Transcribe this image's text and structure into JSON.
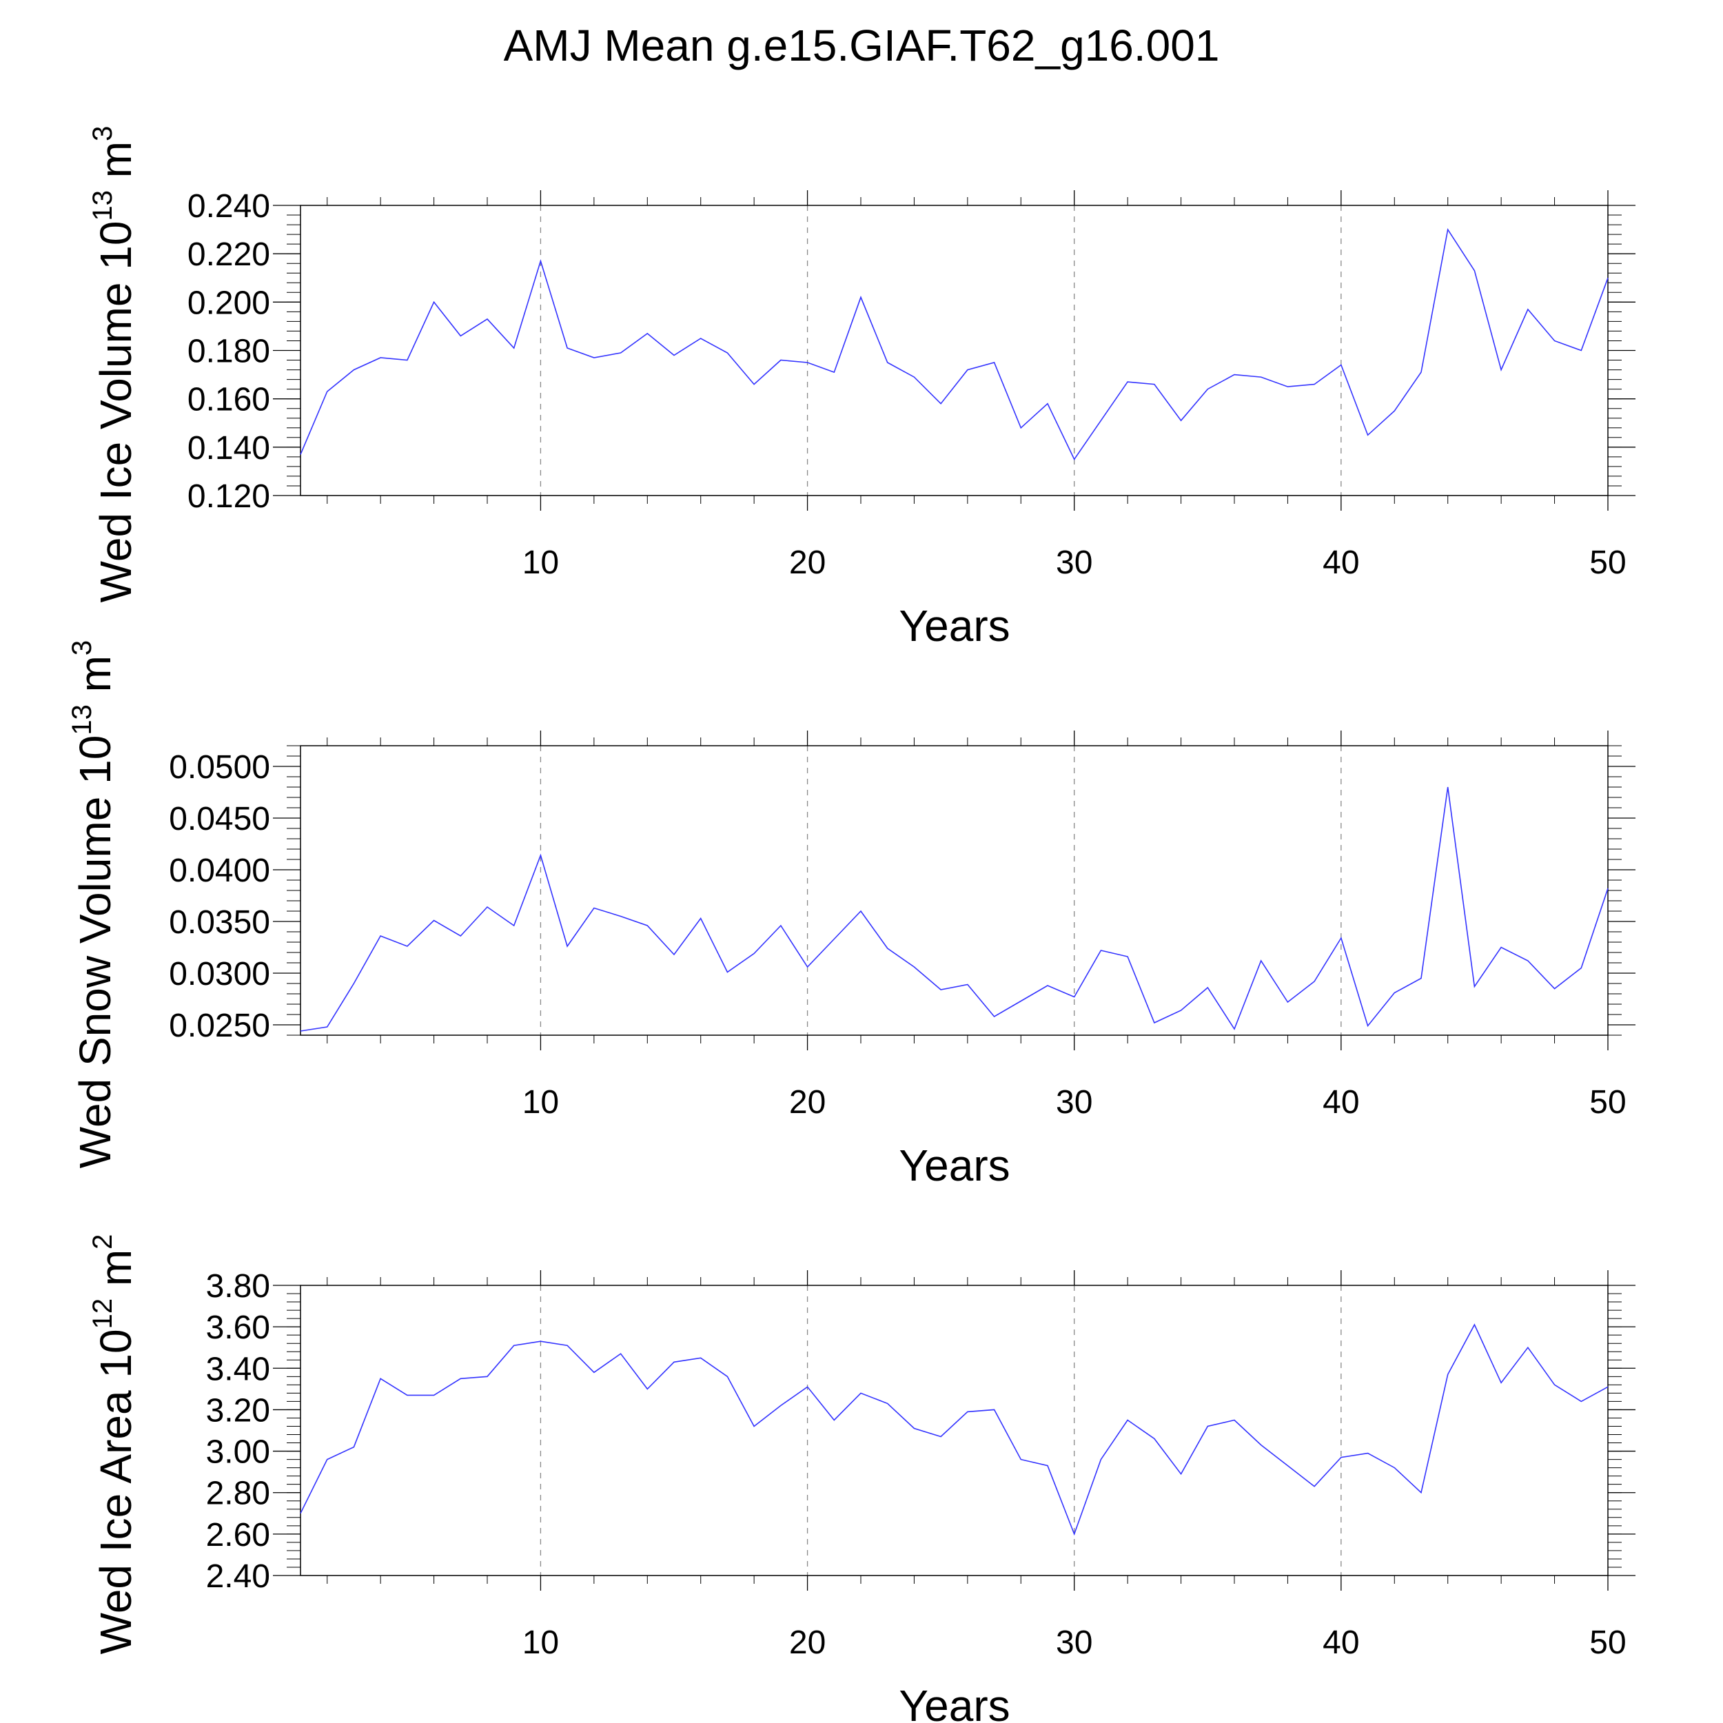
{
  "title": "AMJ Mean g.e15.GIAF.T62_g16.001",
  "chart_data": [
    {
      "type": "line",
      "ylabel": "Wed Ice Volume 10",
      "ylabel_exp": "13",
      "ylabel_unit": " m",
      "ylabel_unit_exp": "3",
      "xlabel": "Years",
      "xlim": [
        1,
        50
      ],
      "ylim": [
        0.12,
        0.24
      ],
      "x_ticks": [
        "10",
        "20",
        "30",
        "40",
        "50"
      ],
      "y_ticks": [
        "0.120",
        "0.140",
        "0.160",
        "0.180",
        "0.200",
        "0.220",
        "0.240"
      ],
      "grid": "vertical dashed at 10, 20, 30, 40",
      "series_color": "#3333ff",
      "values": [
        0.137,
        0.163,
        0.172,
        0.177,
        0.176,
        0.2,
        0.186,
        0.193,
        0.181,
        0.217,
        0.181,
        0.177,
        0.179,
        0.187,
        0.178,
        0.185,
        0.179,
        0.166,
        0.176,
        0.175,
        0.171,
        0.202,
        0.175,
        0.169,
        0.158,
        0.172,
        0.175,
        0.148,
        0.158,
        0.135,
        0.151,
        0.167,
        0.166,
        0.151,
        0.164,
        0.17,
        0.169,
        0.165,
        0.166,
        0.174,
        0.145,
        0.155,
        0.171,
        0.23,
        0.213,
        0.172,
        0.197,
        0.184,
        0.18,
        0.21
      ]
    },
    {
      "type": "line",
      "ylabel": "Wed Snow Volume 10",
      "ylabel_exp": "13",
      "ylabel_unit": " m",
      "ylabel_unit_exp": "3",
      "xlabel": "Years",
      "xlim": [
        1,
        50
      ],
      "ylim": [
        0.024,
        0.052
      ],
      "x_ticks": [
        "10",
        "20",
        "30",
        "40",
        "50"
      ],
      "y_ticks": [
        "0.0250",
        "0.0300",
        "0.0350",
        "0.0400",
        "0.0450",
        "0.0500"
      ],
      "grid": "vertical dashed at 10, 20, 30, 40",
      "series_color": "#3333ff",
      "values": [
        0.0244,
        0.0248,
        0.029,
        0.0336,
        0.0326,
        0.0351,
        0.0336,
        0.0364,
        0.0346,
        0.0414,
        0.0326,
        0.0363,
        0.0355,
        0.0346,
        0.0318,
        0.0353,
        0.0301,
        0.0319,
        0.0346,
        0.0306,
        0.0333,
        0.036,
        0.0324,
        0.0306,
        0.0284,
        0.0289,
        0.0258,
        0.0273,
        0.0288,
        0.0277,
        0.0322,
        0.0316,
        0.0252,
        0.0264,
        0.0286,
        0.0246,
        0.0312,
        0.0272,
        0.0292,
        0.0334,
        0.0249,
        0.0281,
        0.0295,
        0.048,
        0.0287,
        0.0325,
        0.0312,
        0.0285,
        0.0305,
        0.0382
      ]
    },
    {
      "type": "line",
      "ylabel": "Wed Ice Area 10",
      "ylabel_exp": "12",
      "ylabel_unit": " m",
      "ylabel_unit_exp": "2",
      "xlabel": "Years",
      "xlim": [
        1,
        50
      ],
      "ylim": [
        2.4,
        3.8
      ],
      "x_ticks": [
        "10",
        "20",
        "30",
        "40",
        "50"
      ],
      "y_ticks": [
        "2.40",
        "2.60",
        "2.80",
        "3.00",
        "3.20",
        "3.40",
        "3.60",
        "3.80"
      ],
      "grid": "vertical dashed at 10, 20, 30, 40",
      "series_color": "#3333ff",
      "values": [
        2.7,
        2.96,
        3.02,
        3.35,
        3.27,
        3.27,
        3.35,
        3.36,
        3.51,
        3.53,
        3.51,
        3.38,
        3.47,
        3.3,
        3.43,
        3.45,
        3.36,
        3.12,
        3.22,
        3.31,
        3.15,
        3.28,
        3.23,
        3.11,
        3.07,
        3.19,
        3.2,
        2.96,
        2.93,
        2.6,
        2.96,
        3.15,
        3.06,
        2.89,
        3.12,
        3.15,
        3.03,
        2.93,
        2.83,
        2.97,
        2.99,
        2.92,
        2.8,
        3.37,
        3.61,
        3.33,
        3.5,
        3.32,
        3.24,
        3.31
      ]
    }
  ]
}
